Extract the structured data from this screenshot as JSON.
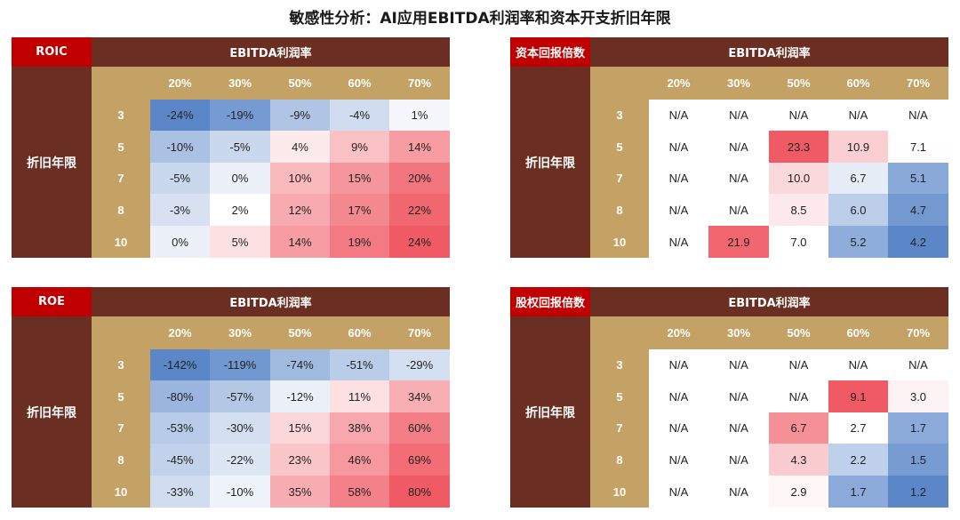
{
  "title": "敏感性分析：AI应用EBITDA利润率和资本开支折旧年限",
  "colors": {
    "header_brown": "#6b2e22",
    "label_red": "#c00000",
    "tan": "#c4a265",
    "low_blue": "#5b87c9",
    "high_red": "#f05a64"
  },
  "chart_data": [
    {
      "type": "heatmap",
      "name": "ROIC",
      "col_header": "EBITDA利润率",
      "row_header": "折旧年限",
      "columns": [
        "20%",
        "30%",
        "50%",
        "60%",
        "70%"
      ],
      "rows": [
        "3",
        "5",
        "7",
        "8",
        "10"
      ],
      "display": [
        [
          "-24%",
          "-19%",
          "-9%",
          "-4%",
          "1%"
        ],
        [
          "-10%",
          "-5%",
          "4%",
          "9%",
          "14%"
        ],
        [
          "-5%",
          "0%",
          "10%",
          "15%",
          "20%"
        ],
        [
          "-3%",
          "2%",
          "12%",
          "17%",
          "22%"
        ],
        [
          "0%",
          "5%",
          "14%",
          "19%",
          "24%"
        ]
      ],
      "values": [
        [
          -24,
          -19,
          -9,
          -4,
          1
        ],
        [
          -10,
          -5,
          4,
          9,
          14
        ],
        [
          -5,
          0,
          10,
          15,
          20
        ],
        [
          -3,
          2,
          12,
          17,
          22
        ],
        [
          0,
          5,
          14,
          19,
          24
        ]
      ],
      "color_scale": "high_red"
    },
    {
      "type": "heatmap",
      "name": "资本回报倍数",
      "col_header": "EBITDA利润率",
      "row_header": "折旧年限",
      "columns": [
        "20%",
        "30%",
        "50%",
        "60%",
        "70%"
      ],
      "rows": [
        "3",
        "5",
        "7",
        "8",
        "10"
      ],
      "display": [
        [
          "N/A",
          "N/A",
          "N/A",
          "N/A",
          "N/A"
        ],
        [
          "N/A",
          "N/A",
          "23.3",
          "10.9",
          "7.1"
        ],
        [
          "N/A",
          "N/A",
          "10.0",
          "6.7",
          "5.1"
        ],
        [
          "N/A",
          "N/A",
          "8.5",
          "6.0",
          "4.7"
        ],
        [
          "N/A",
          "21.9",
          "7.0",
          "5.2",
          "4.2"
        ]
      ],
      "values": [
        [
          null,
          null,
          null,
          null,
          null
        ],
        [
          null,
          null,
          23.3,
          10.9,
          7.1
        ],
        [
          null,
          null,
          10.0,
          6.7,
          5.1
        ],
        [
          null,
          null,
          8.5,
          6.0,
          4.7
        ],
        [
          null,
          21.9,
          7.0,
          5.2,
          4.2
        ]
      ],
      "color_scale": "high_red"
    },
    {
      "type": "heatmap",
      "name": "ROE",
      "col_header": "EBITDA利润率",
      "row_header": "折旧年限",
      "columns": [
        "20%",
        "30%",
        "50%",
        "60%",
        "70%"
      ],
      "rows": [
        "3",
        "5",
        "7",
        "8",
        "10"
      ],
      "display": [
        [
          "-142%",
          "-119%",
          "-74%",
          "-51%",
          "-29%"
        ],
        [
          "-80%",
          "-57%",
          "-12%",
          "11%",
          "34%"
        ],
        [
          "-53%",
          "-30%",
          "15%",
          "38%",
          "60%"
        ],
        [
          "-45%",
          "-22%",
          "23%",
          "46%",
          "69%"
        ],
        [
          "-33%",
          "-10%",
          "35%",
          "58%",
          "80%"
        ]
      ],
      "values": [
        [
          -142,
          -119,
          -74,
          -51,
          -29
        ],
        [
          -80,
          -57,
          -12,
          11,
          34
        ],
        [
          -53,
          -30,
          15,
          38,
          60
        ],
        [
          -45,
          -22,
          23,
          46,
          69
        ],
        [
          -33,
          -10,
          35,
          58,
          80
        ]
      ],
      "color_scale": "high_red"
    },
    {
      "type": "heatmap",
      "name": "股权回报倍数",
      "col_header": "EBITDA利润率",
      "row_header": "折旧年限",
      "columns": [
        "20%",
        "30%",
        "50%",
        "60%",
        "70%"
      ],
      "rows": [
        "3",
        "5",
        "7",
        "8",
        "10"
      ],
      "display": [
        [
          "N/A",
          "N/A",
          "N/A",
          "N/A",
          "N/A"
        ],
        [
          "N/A",
          "N/A",
          "N/A",
          "9.1",
          "3.0"
        ],
        [
          "N/A",
          "N/A",
          "6.7",
          "2.7",
          "1.7"
        ],
        [
          "N/A",
          "N/A",
          "4.3",
          "2.2",
          "1.5"
        ],
        [
          "N/A",
          "N/A",
          "2.9",
          "1.7",
          "1.2"
        ]
      ],
      "values": [
        [
          null,
          null,
          null,
          null,
          null
        ],
        [
          null,
          null,
          null,
          9.1,
          3.0
        ],
        [
          null,
          null,
          6.7,
          2.7,
          1.7
        ],
        [
          null,
          null,
          4.3,
          2.2,
          1.5
        ],
        [
          null,
          null,
          2.9,
          1.7,
          1.2
        ]
      ],
      "color_scale": "high_red"
    }
  ]
}
